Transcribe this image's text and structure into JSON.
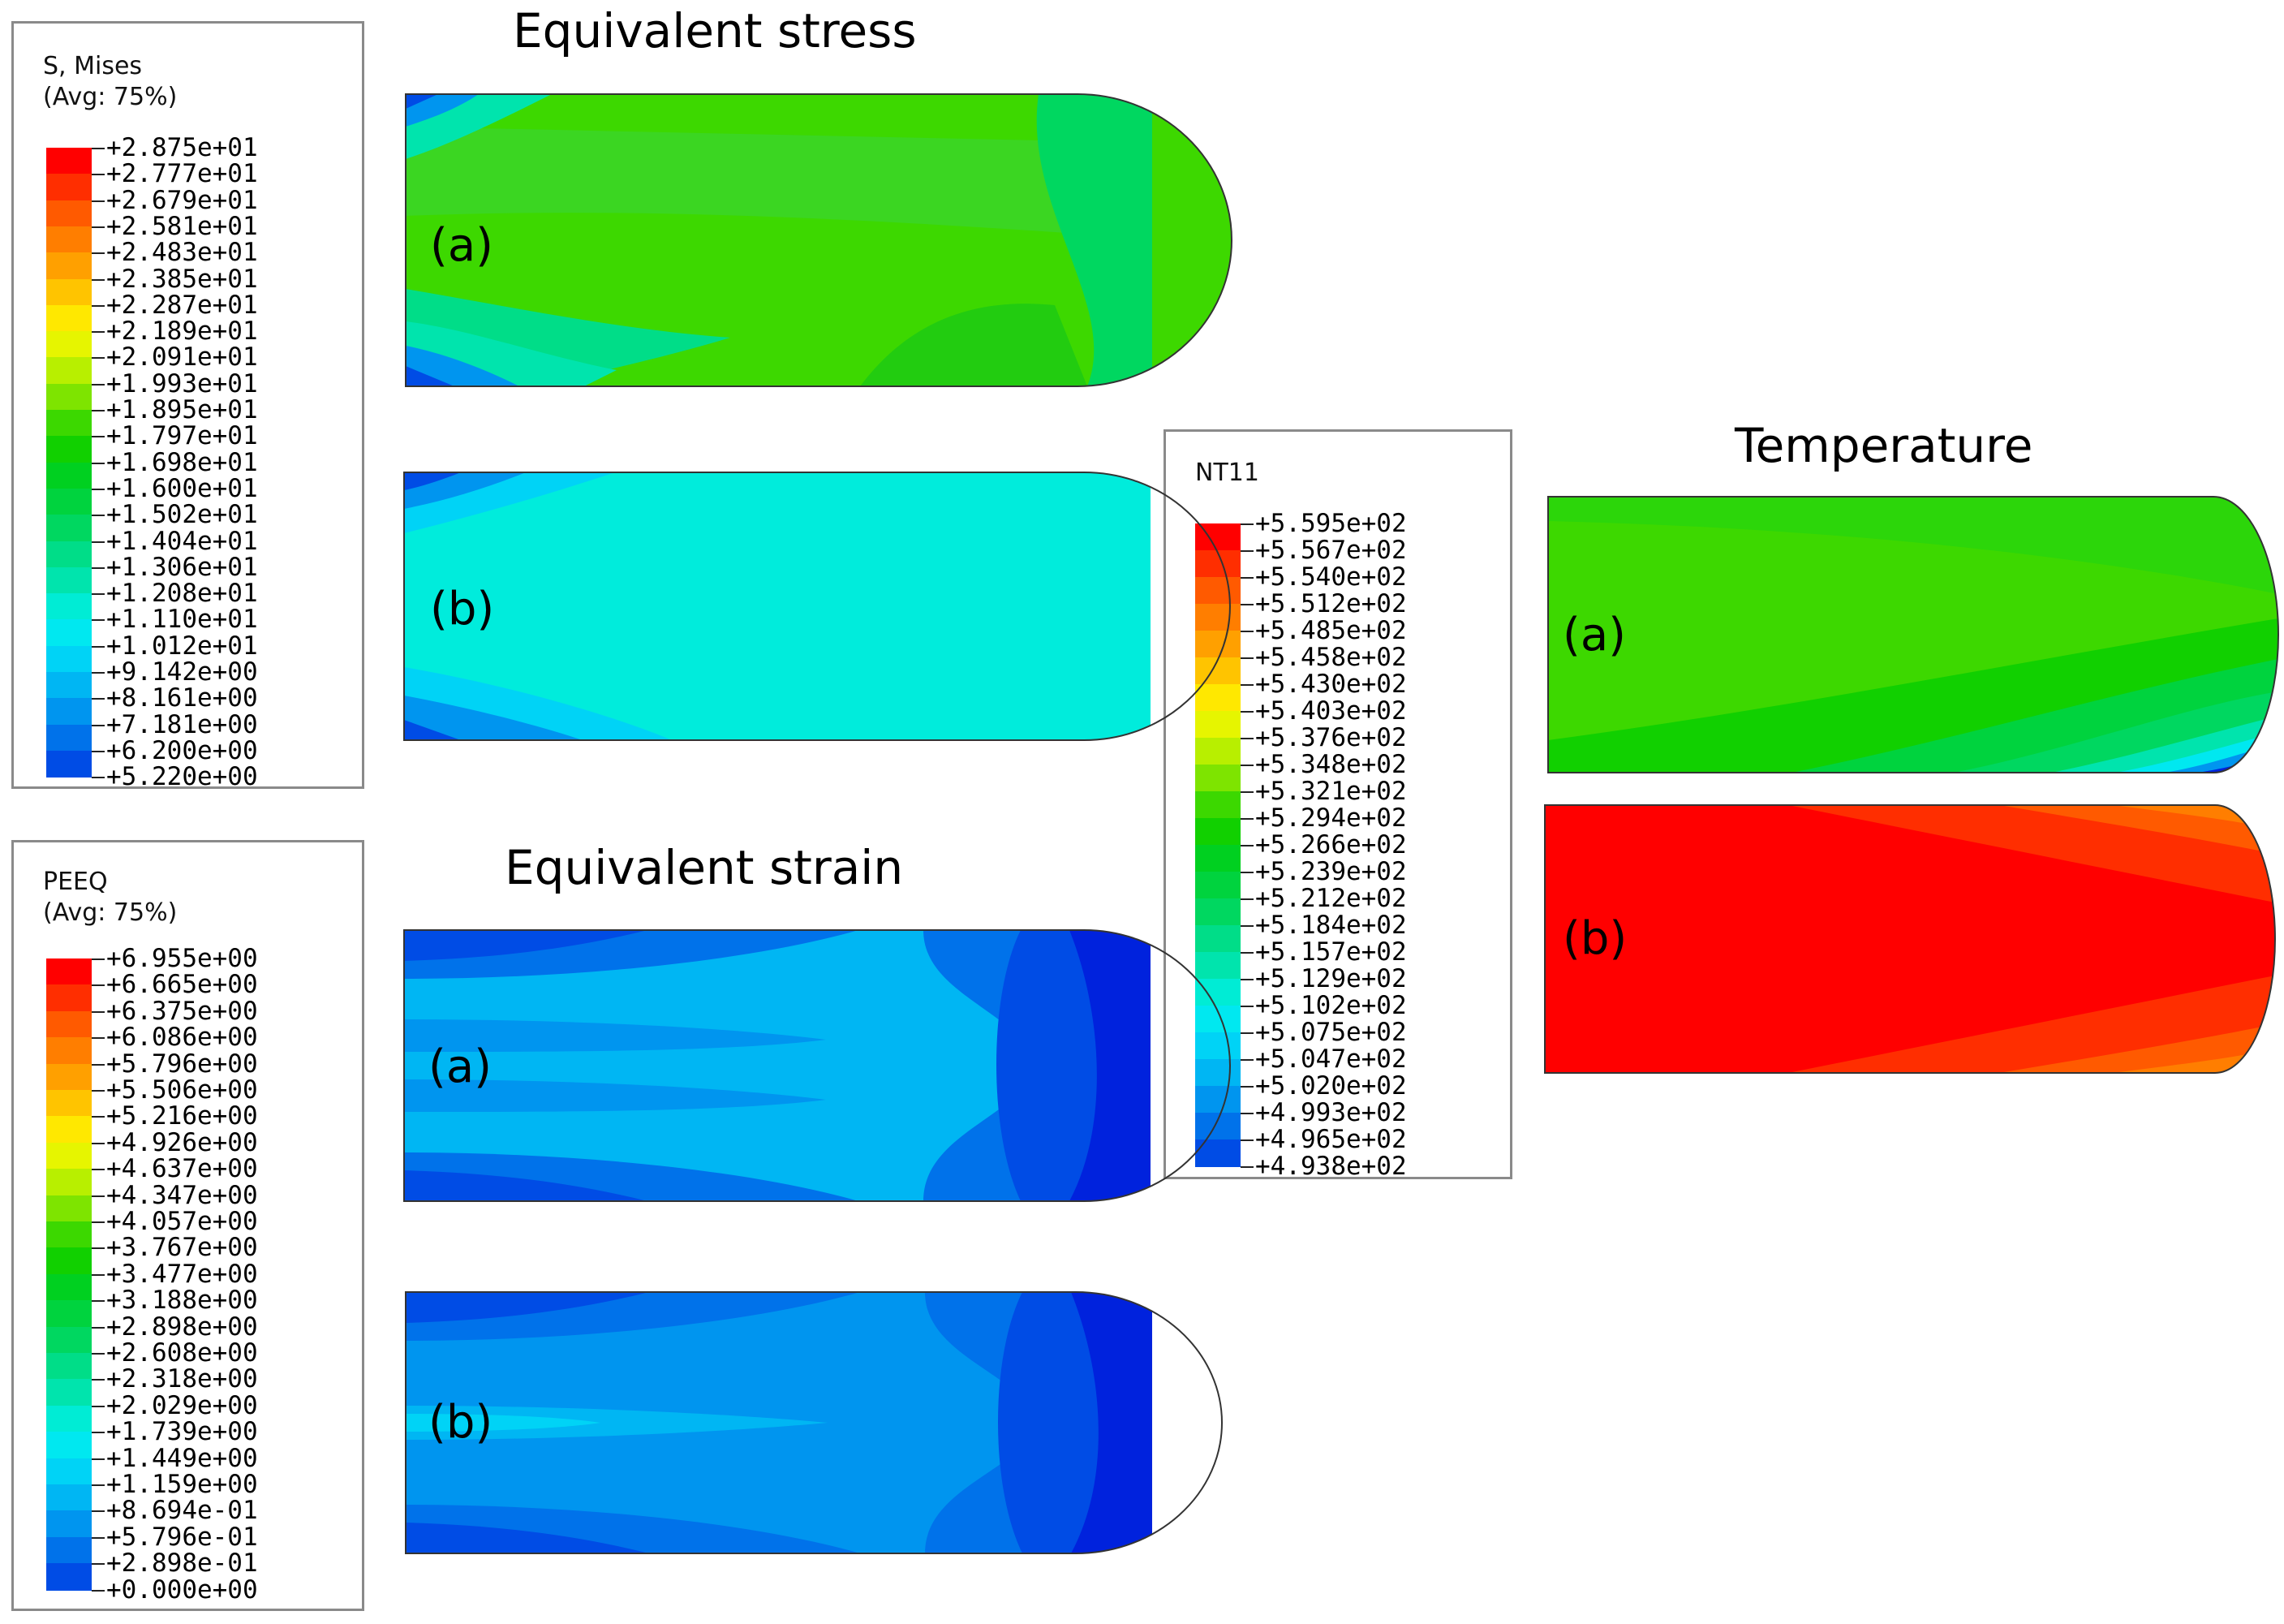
{
  "stress": {
    "title": "Equivalent stress",
    "legend": {
      "title_lines": [
        "S, Mises",
        "(Avg: 75%)"
      ],
      "labels": [
        "+2.875e+01",
        "+2.777e+01",
        "+2.679e+01",
        "+2.581e+01",
        "+2.483e+01",
        "+2.385e+01",
        "+2.287e+01",
        "+2.189e+01",
        "+2.091e+01",
        "+1.993e+01",
        "+1.895e+01",
        "+1.797e+01",
        "+1.698e+01",
        "+1.600e+01",
        "+1.502e+01",
        "+1.404e+01",
        "+1.306e+01",
        "+1.208e+01",
        "+1.110e+01",
        "+1.012e+01",
        "+9.142e+00",
        "+8.161e+00",
        "+7.181e+00",
        "+6.200e+00",
        "+5.220e+00"
      ]
    },
    "labels": [
      "(a)",
      "(b)"
    ]
  },
  "strain": {
    "title": "Equivalent strain",
    "legend": {
      "title_lines": [
        "PEEQ",
        "(Avg: 75%)"
      ],
      "labels": [
        "+6.955e+00",
        "+6.665e+00",
        "+6.375e+00",
        "+6.086e+00",
        "+5.796e+00",
        "+5.506e+00",
        "+5.216e+00",
        "+4.926e+00",
        "+4.637e+00",
        "+4.347e+00",
        "+4.057e+00",
        "+3.767e+00",
        "+3.477e+00",
        "+3.188e+00",
        "+2.898e+00",
        "+2.608e+00",
        "+2.318e+00",
        "+2.029e+00",
        "+1.739e+00",
        "+1.449e+00",
        "+1.159e+00",
        "+8.694e-01",
        "+5.796e-01",
        "+2.898e-01",
        "+0.000e+00"
      ]
    },
    "labels": [
      "(a)",
      "(b)"
    ]
  },
  "temperature": {
    "title": "Temperature",
    "legend": {
      "title_lines": [
        "NT11"
      ],
      "labels": [
        "+5.595e+02",
        "+5.567e+02",
        "+5.540e+02",
        "+5.512e+02",
        "+5.485e+02",
        "+5.458e+02",
        "+5.430e+02",
        "+5.403e+02",
        "+5.376e+02",
        "+5.348e+02",
        "+5.321e+02",
        "+5.294e+02",
        "+5.266e+02",
        "+5.239e+02",
        "+5.212e+02",
        "+5.184e+02",
        "+5.157e+02",
        "+5.129e+02",
        "+5.102e+02",
        "+5.075e+02",
        "+5.047e+02",
        "+5.020e+02",
        "+4.993e+02",
        "+4.965e+02",
        "+4.938e+02"
      ]
    },
    "labels": [
      "(a)",
      "(b)"
    ]
  },
  "colormap": [
    "#ff0000",
    "#ff2e00",
    "#ff5a00",
    "#ff7e00",
    "#ffa000",
    "#ffc400",
    "#ffe800",
    "#e6f500",
    "#b8ef00",
    "#7ee400",
    "#3cd800",
    "#11d000",
    "#00d020",
    "#00d33e",
    "#00d760",
    "#00dd88",
    "#00e4ad",
    "#00ecd5",
    "#00e8f0",
    "#00d3f6",
    "#00b6f3",
    "#0095ef",
    "#0072ea",
    "#004ce5",
    "#0022dd"
  ]
}
